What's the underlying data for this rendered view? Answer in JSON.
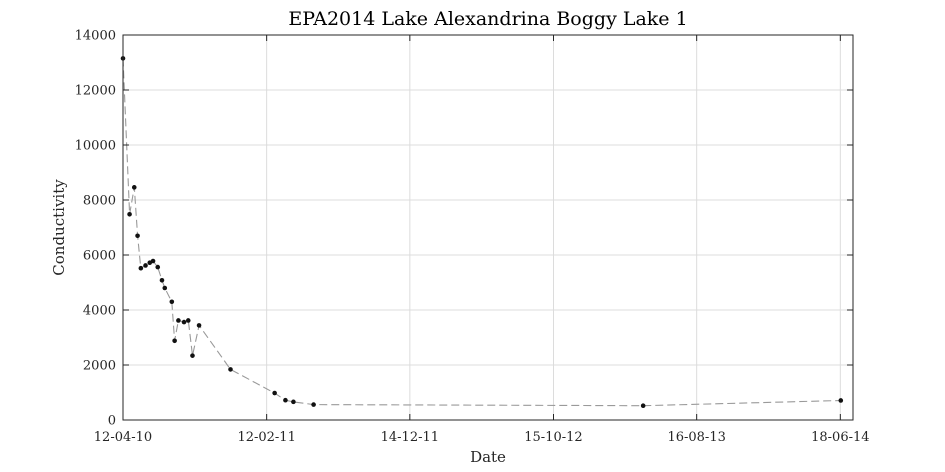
{
  "chart_data": {
    "type": "line",
    "title": "EPA2014 Lake Alexandrina Boggy Lake 1",
    "xlabel": "Date",
    "ylabel": "Conductivity",
    "x_axis": "date",
    "xlim": [
      "2010-04-12",
      "2014-07-15"
    ],
    "ylim": [
      0,
      14000
    ],
    "xticks": [
      {
        "date": "2010-04-12",
        "label": "12-04-10"
      },
      {
        "date": "2011-02-12",
        "label": "12-02-11"
      },
      {
        "date": "2011-12-14",
        "label": "14-12-11"
      },
      {
        "date": "2012-10-15",
        "label": "15-10-12"
      },
      {
        "date": "2013-08-16",
        "label": "16-08-13"
      },
      {
        "date": "2014-06-18",
        "label": "18-06-14"
      }
    ],
    "yticks": [
      0,
      2000,
      4000,
      6000,
      8000,
      10000,
      12000,
      14000
    ],
    "grid": true,
    "series": [
      {
        "color": "#9a9a9a",
        "marker_color": "#111111",
        "line_style": "dashed",
        "points": [
          {
            "x": "2010-04-12",
            "y": 13150
          },
          {
            "x": "2010-04-26",
            "y": 7480
          },
          {
            "x": "2010-05-06",
            "y": 8460
          },
          {
            "x": "2010-05-13",
            "y": 6700
          },
          {
            "x": "2010-05-20",
            "y": 5520
          },
          {
            "x": "2010-05-30",
            "y": 5620
          },
          {
            "x": "2010-06-08",
            "y": 5720
          },
          {
            "x": "2010-06-15",
            "y": 5780
          },
          {
            "x": "2010-06-25",
            "y": 5560
          },
          {
            "x": "2010-07-04",
            "y": 5080
          },
          {
            "x": "2010-07-10",
            "y": 4800
          },
          {
            "x": "2010-07-25",
            "y": 4300
          },
          {
            "x": "2010-07-31",
            "y": 2880
          },
          {
            "x": "2010-08-08",
            "y": 3620
          },
          {
            "x": "2010-08-20",
            "y": 3560
          },
          {
            "x": "2010-08-29",
            "y": 3620
          },
          {
            "x": "2010-09-07",
            "y": 2340
          },
          {
            "x": "2010-09-21",
            "y": 3440
          },
          {
            "x": "2010-11-27",
            "y": 1840
          },
          {
            "x": "2011-03-01",
            "y": 980
          },
          {
            "x": "2011-03-24",
            "y": 720
          },
          {
            "x": "2011-04-10",
            "y": 660
          },
          {
            "x": "2011-05-23",
            "y": 560
          },
          {
            "x": "2013-04-24",
            "y": 520
          },
          {
            "x": "2014-06-19",
            "y": 710
          }
        ]
      }
    ]
  }
}
